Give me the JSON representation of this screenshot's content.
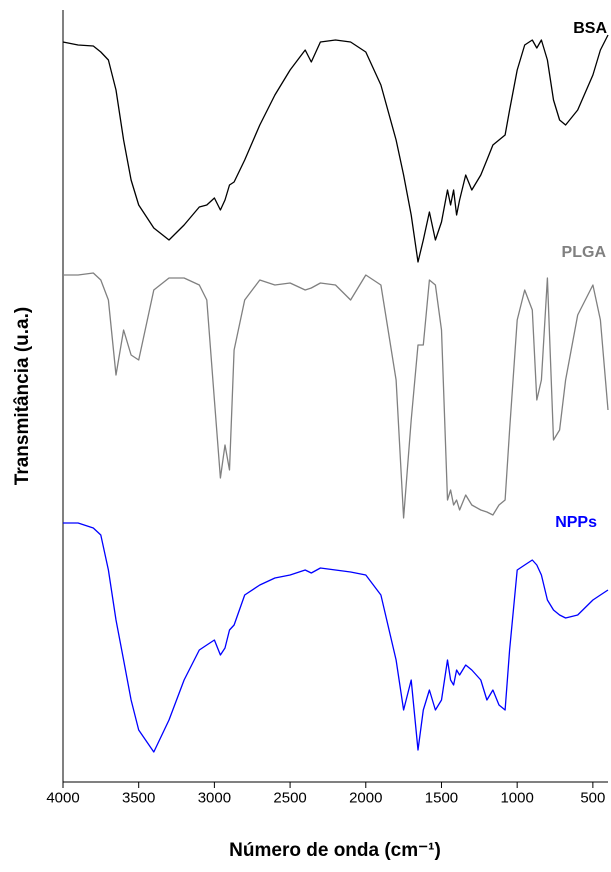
{
  "chart_data": {
    "type": "line",
    "x_label": "Número de onda (cm⁻¹)",
    "y_label": "Transmitância (u.a.)",
    "xlim": [
      4000,
      400
    ],
    "xticks": [
      4000,
      3500,
      3000,
      2500,
      2000,
      1500,
      1000,
      500
    ],
    "ylim": [
      0,
      772
    ],
    "x": [
      4000,
      3900,
      3800,
      3750,
      3700,
      3650,
      3600,
      3550,
      3500,
      3400,
      3300,
      3200,
      3100,
      3050,
      3000,
      2960,
      2930,
      2900,
      2870,
      2800,
      2700,
      2600,
      2500,
      2400,
      2360,
      2300,
      2200,
      2100,
      2000,
      1900,
      1800,
      1750,
      1700,
      1655,
      1620,
      1580,
      1540,
      1500,
      1460,
      1440,
      1420,
      1400,
      1380,
      1340,
      1300,
      1240,
      1200,
      1160,
      1120,
      1080,
      1050,
      1000,
      950,
      900,
      870,
      840,
      800,
      760,
      720,
      680,
      600,
      500,
      450,
      400
    ],
    "series": [
      {
        "name": "BSA",
        "color": "#000000",
        "values": [
          740,
          737,
          736,
          730,
          722,
          692,
          642,
          602,
          577,
          554,
          542,
          557,
          575,
          577,
          584,
          572,
          582,
          597,
          600,
          622,
          657,
          687,
          712,
          732,
          720,
          740,
          742,
          740,
          730,
          697,
          642,
          607,
          567,
          520,
          542,
          570,
          542,
          560,
          592,
          577,
          592,
          567,
          582,
          607,
          592,
          607,
          622,
          637,
          642,
          647,
          672,
          712,
          737,
          742,
          734,
          742,
          722,
          682,
          662,
          657,
          672,
          707,
          732,
          747
        ]
      },
      {
        "name": "PLGA",
        "color": "#808080",
        "values": [
          507,
          507,
          509,
          502,
          482,
          407,
          452,
          427,
          422,
          492,
          504,
          504,
          497,
          482,
          382,
          304,
          337,
          312,
          432,
          482,
          502,
          497,
          499,
          492,
          494,
          499,
          497,
          482,
          507,
          497,
          402,
          264,
          362,
          437,
          437,
          502,
          497,
          452,
          282,
          292,
          277,
          282,
          272,
          287,
          277,
          272,
          270,
          267,
          277,
          282,
          352,
          462,
          492,
          472,
          382,
          402,
          504,
          342,
          352,
          402,
          467,
          497,
          462,
          372
        ]
      },
      {
        "name": "NPPs",
        "color": "#0000ff",
        "values": [
          259,
          259,
          254,
          247,
          212,
          162,
          122,
          82,
          52,
          30,
          62,
          102,
          132,
          137,
          142,
          127,
          134,
          152,
          157,
          187,
          197,
          204,
          207,
          212,
          209,
          214,
          212,
          210,
          207,
          187,
          122,
          72,
          102,
          32,
          72,
          92,
          72,
          82,
          122,
          102,
          97,
          112,
          107,
          117,
          112,
          102,
          82,
          92,
          77,
          72,
          132,
          212,
          217,
          222,
          217,
          207,
          182,
          172,
          167,
          164,
          167,
          182,
          187,
          192
        ]
      }
    ]
  }
}
